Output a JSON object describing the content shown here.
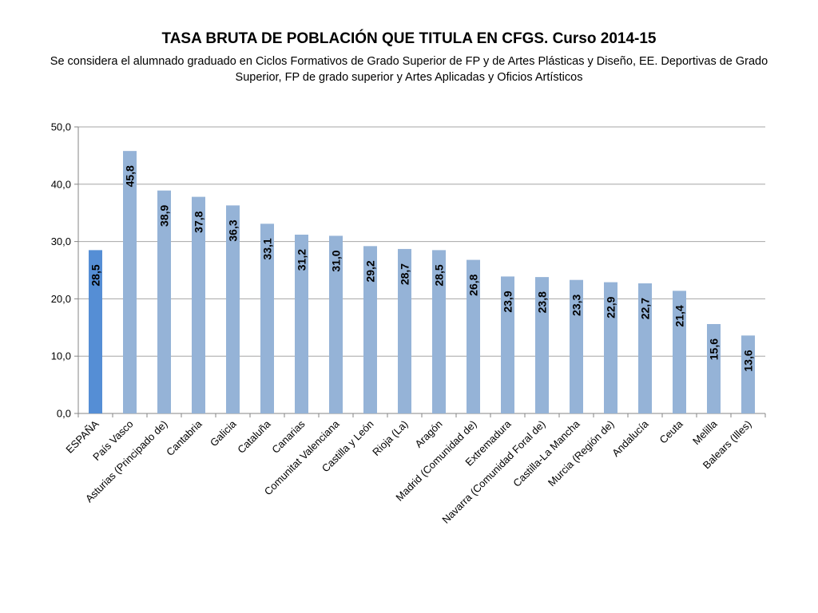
{
  "title": "TASA BRUTA DE POBLACIÓN QUE TITULA EN CFGS. Curso 2014-15",
  "subtitle": "Se considera el alumnado graduado en Ciclos Formativos de Grado Superior de FP y de Artes Plásticas y Diseño, EE. Deportivas de Grado Superior, FP de grado superior y Artes Aplicadas y Oficios Artísticos",
  "colors": {
    "highlight": "#558ed5",
    "bar": "#95b3d7",
    "grid": "#a6a6a6",
    "axis": "#868686"
  },
  "chart_data": {
    "type": "bar",
    "title": "TASA BRUTA DE POBLACIÓN QUE TITULA EN CFGS. Curso 2014-15",
    "xlabel": "",
    "ylabel": "",
    "ylim": [
      0,
      50
    ],
    "yticks": [
      0,
      10,
      20,
      30,
      40,
      50
    ],
    "ytick_labels": [
      "0,0",
      "10,0",
      "20,0",
      "30,0",
      "40,0",
      "50,0"
    ],
    "grid": true,
    "legend": "none",
    "highlight_category": "ESPAÑA",
    "categories": [
      "ESPAÑA",
      "País Vasco",
      "Asturias (Principado de)",
      "Cantabria",
      "Galicia",
      "Cataluña",
      "Canarias",
      "Comunitat Valenciana",
      "Castilla y León",
      "Rioja (La)",
      "Aragón",
      "Madrid (Comunidad de)",
      "Extremadura",
      "Navarra (Comunidad Foral de)",
      "Castilla-La Mancha",
      "Murcia (Región de)",
      "Andalucía",
      "Ceuta",
      "Melilla",
      "Balears (Illes)"
    ],
    "values": [
      28.5,
      45.8,
      38.9,
      37.8,
      36.3,
      33.1,
      31.2,
      31.0,
      29.2,
      28.7,
      28.5,
      26.8,
      23.9,
      23.8,
      23.3,
      22.9,
      22.7,
      21.4,
      15.6,
      13.6
    ],
    "value_labels": [
      "28,5",
      "45,8",
      "38,9",
      "37,8",
      "36,3",
      "33,1",
      "31,2",
      "31,0",
      "29,2",
      "28,7",
      "28,5",
      "26,8",
      "23,9",
      "23,8",
      "23,3",
      "22,9",
      "22,7",
      "21,4",
      "15,6",
      "13,6"
    ]
  }
}
